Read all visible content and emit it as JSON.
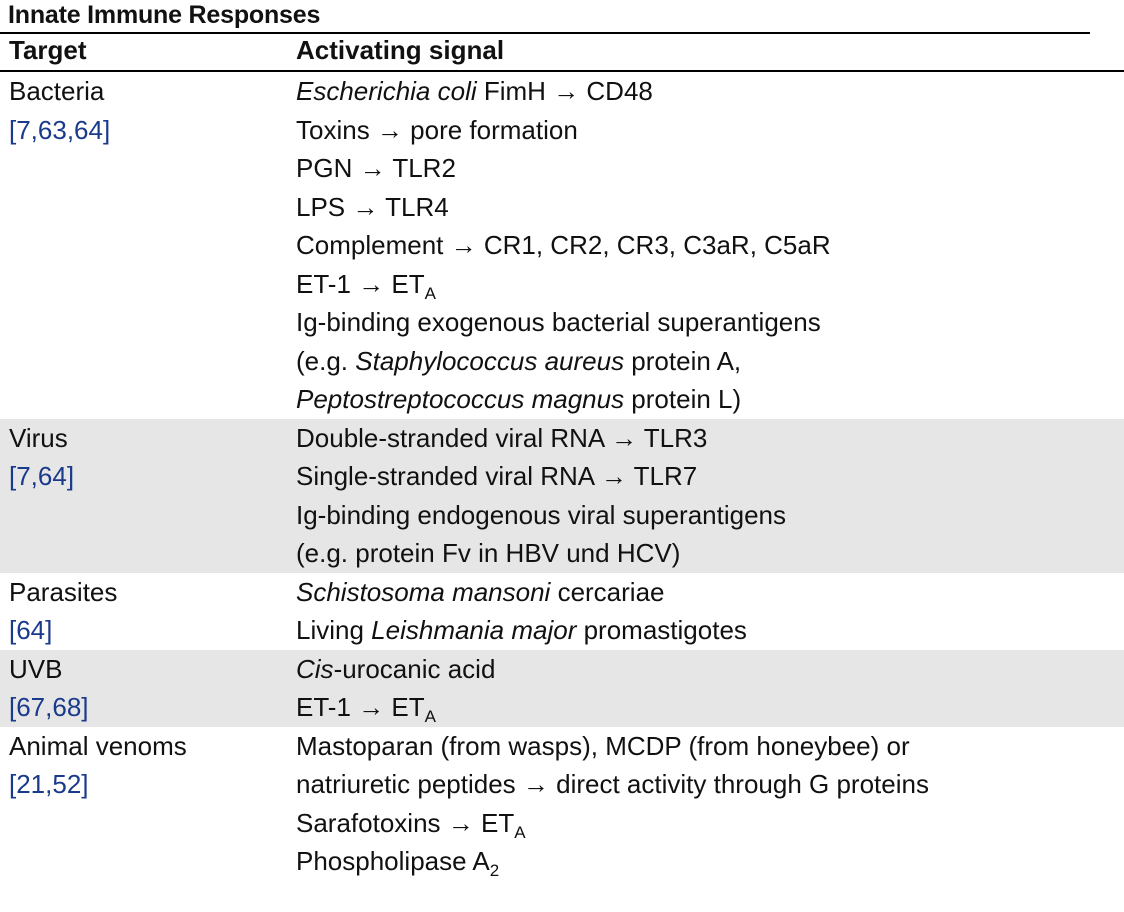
{
  "title": "Innate Immune Responses",
  "columns": {
    "target": "Target",
    "signal": "Activating signal"
  },
  "rows": [
    {
      "target": "Bacteria",
      "ref": "[7,63,64]",
      "shaded": false,
      "lines": [
        [
          {
            "t": "Escherichia coli",
            "i": true
          },
          {
            "t": " FimH → CD48"
          }
        ],
        [
          {
            "t": "Toxins → pore formation"
          }
        ],
        [
          {
            "t": "PGN → TLR2"
          }
        ],
        [
          {
            "t": "LPS → TLR4"
          }
        ],
        [
          {
            "t": "Complement → CR1, CR2, CR3, C3aR, C5aR"
          }
        ],
        [
          {
            "t": "ET-1 → ET"
          },
          {
            "t": "A",
            "sub": true
          }
        ],
        [
          {
            "t": "Ig-binding exogenous bacterial superantigens"
          }
        ],
        [
          {
            "t": "(e.g. "
          },
          {
            "t": "Staphylococcus aureus",
            "i": true
          },
          {
            "t": " protein A,"
          }
        ],
        [
          {
            "t": "Peptostreptococcus magnus",
            "i": true
          },
          {
            "t": " protein L)"
          }
        ]
      ]
    },
    {
      "target": "Virus",
      "ref": "[7,64]",
      "shaded": true,
      "lines": [
        [
          {
            "t": "Double-stranded viral RNA → TLR3"
          }
        ],
        [
          {
            "t": "Single-stranded viral RNA → TLR7"
          }
        ],
        [
          {
            "t": "Ig-binding endogenous viral superantigens"
          }
        ],
        [
          {
            "t": "(e.g. protein Fv in HBV und HCV)"
          }
        ]
      ]
    },
    {
      "target": "Parasites",
      "ref": "[64]",
      "shaded": false,
      "lines": [
        [
          {
            "t": "Schistosoma mansoni",
            "i": true
          },
          {
            "t": " cercariae"
          }
        ],
        [
          {
            "t": "Living "
          },
          {
            "t": "Leishmania major",
            "i": true
          },
          {
            "t": " promastigotes"
          }
        ]
      ]
    },
    {
      "target": "UVB",
      "ref": "[67,68]",
      "shaded": true,
      "lines": [
        [
          {
            "t": "Cis",
            "i": true
          },
          {
            "t": "-urocanic acid"
          }
        ],
        [
          {
            "t": "ET-1 → ET"
          },
          {
            "t": "A",
            "sub": true
          }
        ]
      ]
    },
    {
      "target": "Animal venoms",
      "ref": "[21,52]",
      "shaded": false,
      "lines": [
        [
          {
            "t": "Mastoparan (from wasps), MCDP (from honeybee) or"
          }
        ],
        [
          {
            "t": "natriuretic peptides → direct activity through G proteins"
          }
        ],
        [
          {
            "t": "Sarafotoxins → ET"
          },
          {
            "t": "A",
            "sub": true
          }
        ],
        [
          {
            "t": "Phospholipase A"
          },
          {
            "t": "2",
            "sub": true
          }
        ]
      ]
    }
  ]
}
